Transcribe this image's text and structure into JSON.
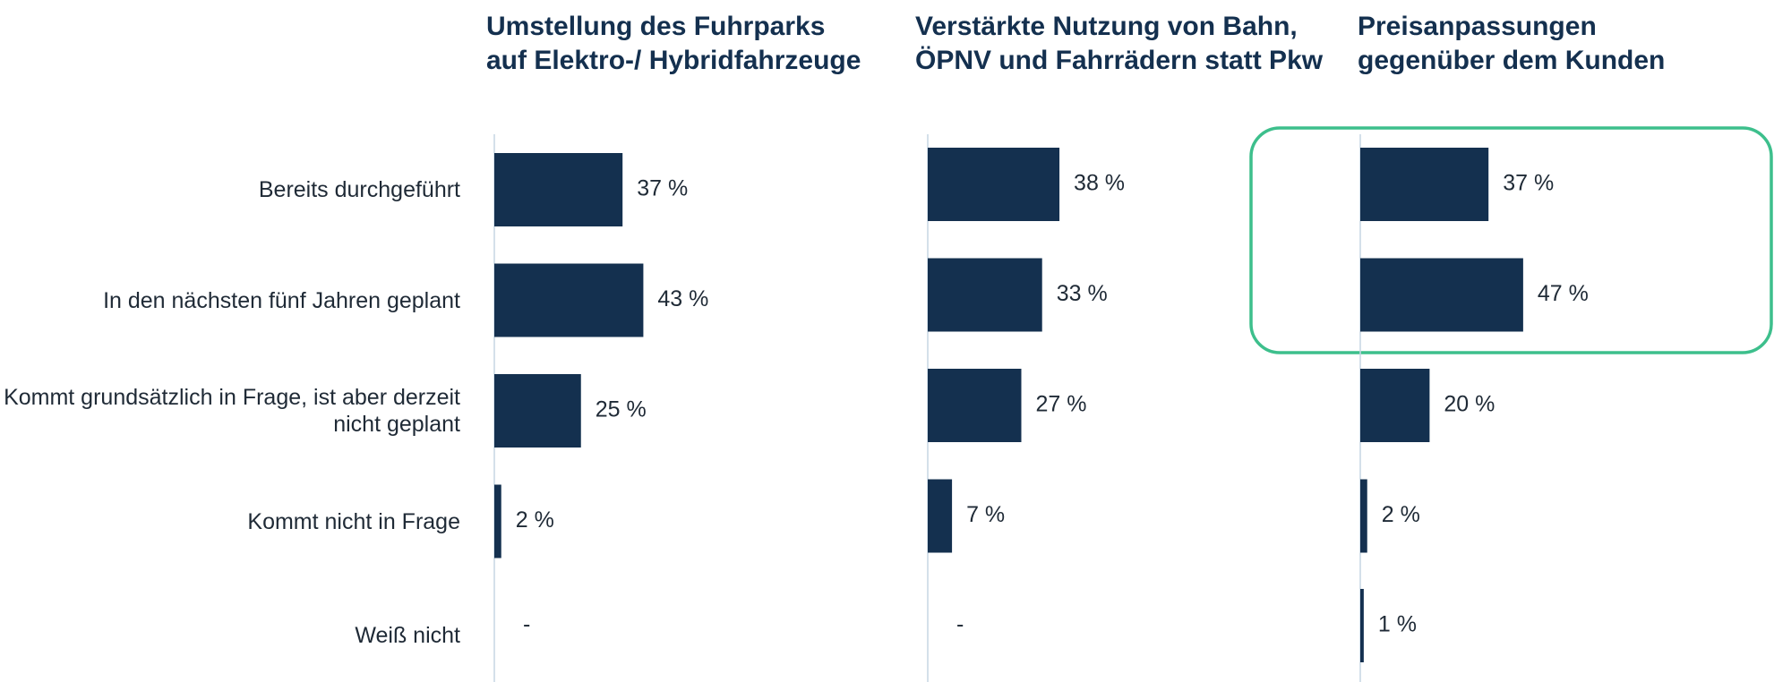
{
  "chart_data": [
    {
      "type": "bar",
      "orientation": "horizontal",
      "title": "Umstellung des Fuhrparks auf Elektro-/ Hybridfahrzeuge",
      "categories": [
        "Bereits durchgeführt",
        "In den nächsten fünf Jahren geplant",
        "Kommt grundsätzlich in Frage, ist aber derzeit nicht geplant",
        "Kommt nicht in Frage",
        "Weiß nicht"
      ],
      "values": [
        37,
        43,
        25,
        2,
        null
      ],
      "value_labels": [
        "37 %",
        "43 %",
        "25 %",
        "2 %",
        "-"
      ],
      "color": "#14304f"
    },
    {
      "type": "bar",
      "orientation": "horizontal",
      "title": "Verstärkte Nutzung von Bahn, ÖPNV und Fahrrädern statt Pkw",
      "values": [
        38,
        33,
        27,
        7,
        null
      ],
      "value_labels": [
        "38 %",
        "33 %",
        "27 %",
        "7 %",
        "-"
      ],
      "color": "#14304f"
    },
    {
      "type": "bar",
      "orientation": "horizontal",
      "title": "Preisanpassungen gegenüber dem Kunden",
      "values": [
        37,
        47,
        20,
        2,
        1
      ],
      "value_labels": [
        "37 %",
        "47 %",
        "20 %",
        "2 %",
        "1 %"
      ],
      "color": "#14304f"
    }
  ]
}
